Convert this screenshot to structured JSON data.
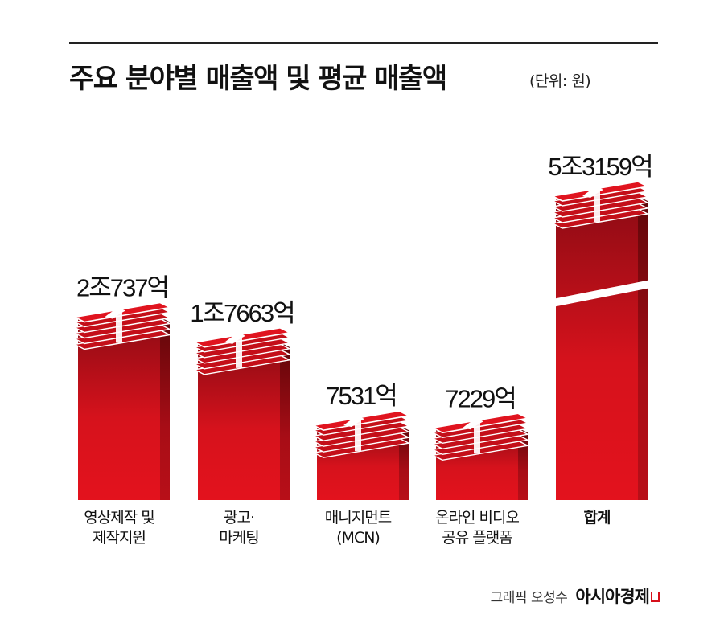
{
  "header": {
    "title": "주요 분야별 매출액 및 평균 매출액",
    "unit": "(단위: 원)"
  },
  "chart_data": {
    "type": "bar",
    "title": "주요 분야별 매출액 및 평균 매출액",
    "unit": "원",
    "categories": [
      "영상제작 및\n제작지원",
      "광고·\n마케팅",
      "매니지먼트\n(MCN)",
      "온라인 비디오\n공유 플랫폼",
      "합계"
    ],
    "values": [
      20737,
      17663,
      7531,
      7229,
      53159
    ],
    "value_labels": [
      "2조737억",
      "1조7663억",
      "7531억",
      "7229억",
      "5조3159억"
    ],
    "axis_break_on": "합계",
    "colors": {
      "bar_top": "#8c0b14",
      "bar_bottom": "#e3121d",
      "accent": "#d6101b"
    }
  },
  "footer": {
    "credit": "그래픽 오성수",
    "brand": "아시아경제"
  }
}
